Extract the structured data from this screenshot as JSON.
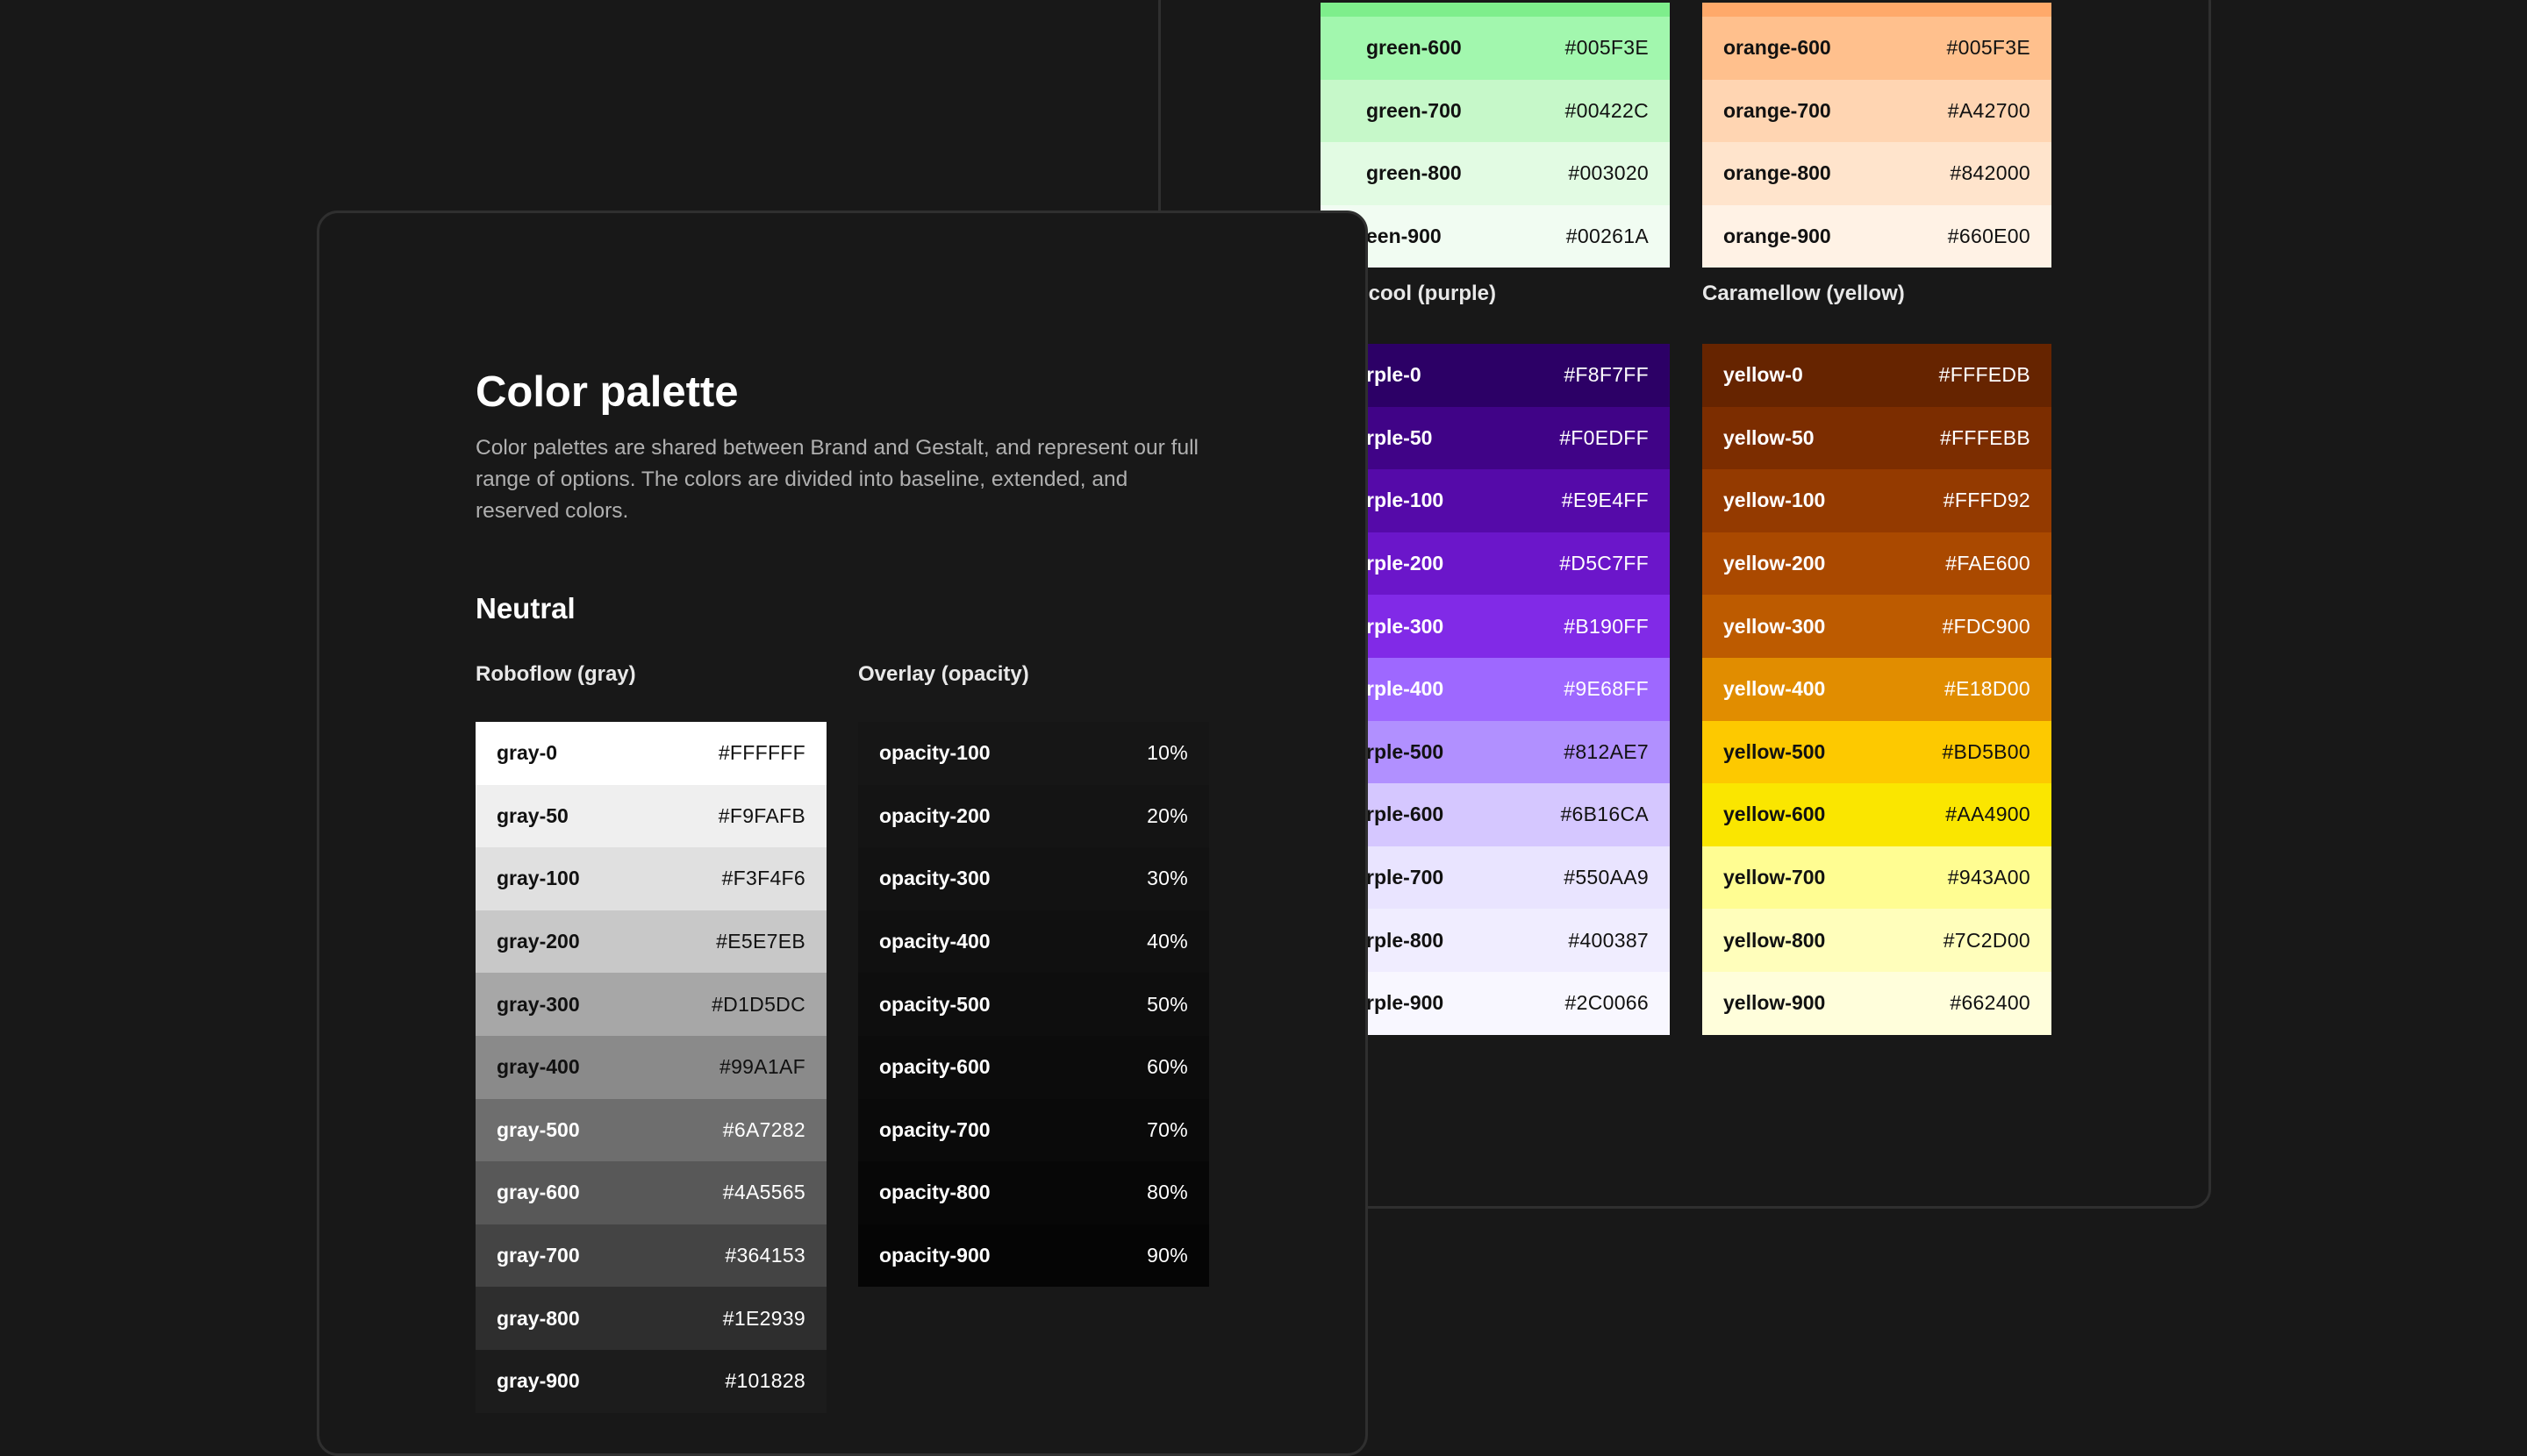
{
  "back": {
    "green": {
      "rows": [
        {
          "name": "green-600",
          "value": "#005F3E",
          "bg": "#A2F7AE"
        },
        {
          "name": "green-700",
          "value": "#00422C",
          "bg": "#C6F8C9"
        },
        {
          "name": "green-800",
          "value": "#003020",
          "bg": "#E2FBE3"
        },
        {
          "name": "een-900",
          "value": "#00261A",
          "bg": "#F1FCF2"
        }
      ]
    },
    "orange": {
      "rows": [
        {
          "name": "orange-600",
          "value": "#005F3E",
          "bg": "#FFC08D"
        },
        {
          "name": "orange-700",
          "value": "#A42700",
          "bg": "#FFD5B2"
        },
        {
          "name": "orange-800",
          "value": "#842000",
          "bg": "#FFE4CC"
        },
        {
          "name": "orange-900",
          "value": "#660E00",
          "bg": "#FFF2E5"
        }
      ]
    },
    "purple": {
      "label": "icool (purple)",
      "rows": [
        {
          "name": "rple-0",
          "value": "#F8F7FF",
          "bg": "#2C0066",
          "text": "light"
        },
        {
          "name": "rple-50",
          "value": "#F0EDFF",
          "bg": "#400387",
          "text": "light"
        },
        {
          "name": "rple-100",
          "value": "#E9E4FF",
          "bg": "#550AA9",
          "text": "light"
        },
        {
          "name": "rple-200",
          "value": "#D5C7FF",
          "bg": "#6B16CA",
          "text": "light"
        },
        {
          "name": "rple-300",
          "value": "#B190FF",
          "bg": "#812AE7",
          "text": "light"
        },
        {
          "name": "rple-400",
          "value": "#9E68FF",
          "bg": "#9E68FF",
          "text": "light"
        },
        {
          "name": "rple-500",
          "value": "#812AE7",
          "bg": "#B190FF",
          "text": "dark"
        },
        {
          "name": "rple-600",
          "value": "#6B16CA",
          "bg": "#D5C7FF",
          "text": "dark"
        },
        {
          "name": "rple-700",
          "value": "#550AA9",
          "bg": "#E9E4FF",
          "text": "dark"
        },
        {
          "name": "rple-800",
          "value": "#400387",
          "bg": "#F0EDFF",
          "text": "dark"
        },
        {
          "name": "rple-900",
          "value": "#2C0066",
          "bg": "#F8F7FF",
          "text": "dark"
        }
      ]
    },
    "yellow": {
      "label": "Caramellow (yellow)",
      "rows": [
        {
          "name": "yellow-0",
          "value": "#FFFEDB",
          "bg": "#662400",
          "text": "light"
        },
        {
          "name": "yellow-50",
          "value": "#FFFEBB",
          "bg": "#7C2D00",
          "text": "light"
        },
        {
          "name": "yellow-100",
          "value": "#FFFD92",
          "bg": "#943A00",
          "text": "light"
        },
        {
          "name": "yellow-200",
          "value": "#FAE600",
          "bg": "#AA4900",
          "text": "light"
        },
        {
          "name": "yellow-300",
          "value": "#FDC900",
          "bg": "#BD5B00",
          "text": "light"
        },
        {
          "name": "yellow-400",
          "value": "#E18D00",
          "bg": "#E18D00",
          "text": "light"
        },
        {
          "name": "yellow-500",
          "value": "#BD5B00",
          "bg": "#FDC900",
          "text": "dark"
        },
        {
          "name": "yellow-600",
          "value": "#AA4900",
          "bg": "#FAE600",
          "text": "dark"
        },
        {
          "name": "yellow-700",
          "value": "#943A00",
          "bg": "#FFFD92",
          "text": "dark"
        },
        {
          "name": "yellow-800",
          "value": "#7C2D00",
          "bg": "#FFFEBB",
          "text": "dark"
        },
        {
          "name": "yellow-900",
          "value": "#662400",
          "bg": "#FFFEDB",
          "text": "dark"
        }
      ]
    }
  },
  "front": {
    "title": "Color palette",
    "description": "Color palettes are shared between Brand and Gestalt, and represent our full range of options. The colors are divided into baseline, extended, and reserved colors.",
    "section": "Neutral",
    "gray": {
      "label": "Roboflow (gray)",
      "rows": [
        {
          "name": "gray-0",
          "value": "#FFFFFF",
          "bg": "#FFFFFF",
          "text": "dark"
        },
        {
          "name": "gray-50",
          "value": "#F9FAFB",
          "bg": "#EFEFEF",
          "text": "dark"
        },
        {
          "name": "gray-100",
          "value": "#F3F4F6",
          "bg": "#E0E0E0",
          "text": "dark"
        },
        {
          "name": "gray-200",
          "value": "#E5E7EB",
          "bg": "#C8C8C8",
          "text": "dark"
        },
        {
          "name": "gray-300",
          "value": "#D1D5DC",
          "bg": "#A7A7A7",
          "text": "dark"
        },
        {
          "name": "gray-400",
          "value": "#99A1AF",
          "bg": "#8A8A8A",
          "text": "dark"
        },
        {
          "name": "gray-500",
          "value": "#6A7282",
          "bg": "#6E6E6E",
          "text": "light"
        },
        {
          "name": "gray-600",
          "value": "#4A5565",
          "bg": "#585858",
          "text": "light"
        },
        {
          "name": "gray-700",
          "value": "#364153",
          "bg": "#444444",
          "text": "light"
        },
        {
          "name": "gray-800",
          "value": "#1E2939",
          "bg": "#2E2E2E",
          "text": "light"
        },
        {
          "name": "gray-900",
          "value": "#101828",
          "bg": "#1C1C1C",
          "text": "light"
        }
      ]
    },
    "overlay": {
      "label": "Overlay (opacity)",
      "rows": [
        {
          "name": "opacity-100",
          "value": "10%",
          "bg": "#161616"
        },
        {
          "name": "opacity-200",
          "value": "20%",
          "bg": "#141414"
        },
        {
          "name": "opacity-300",
          "value": "30%",
          "bg": "#121212"
        },
        {
          "name": "opacity-400",
          "value": "40%",
          "bg": "#101010"
        },
        {
          "name": "opacity-500",
          "value": "50%",
          "bg": "#0E0E0E"
        },
        {
          "name": "opacity-600",
          "value": "60%",
          "bg": "#0C0C0C"
        },
        {
          "name": "opacity-700",
          "value": "70%",
          "bg": "#0A0A0A"
        },
        {
          "name": "opacity-800",
          "value": "80%",
          "bg": "#070707"
        },
        {
          "name": "opacity-900",
          "value": "90%",
          "bg": "#050505"
        }
      ]
    }
  }
}
